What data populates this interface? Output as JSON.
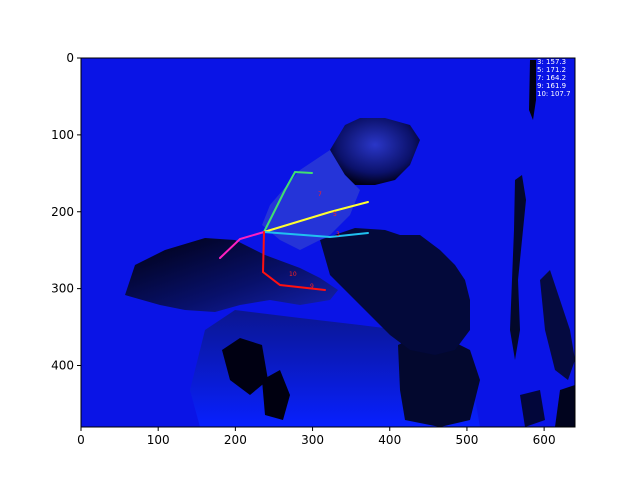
{
  "axes": {
    "x_ticks": [
      "0",
      "100",
      "200",
      "300",
      "400",
      "500",
      "600"
    ],
    "y_ticks": [
      "0",
      "100",
      "200",
      "300",
      "400"
    ],
    "xlim": [
      0,
      640
    ],
    "ylim": [
      480,
      0
    ]
  },
  "overlay_values": [
    "3: 157.3",
    "5: 171.2",
    "7: 164.2",
    "9: 161.9",
    "10: 107.7"
  ],
  "joint_labels": [
    "7",
    "5",
    "3",
    "10",
    "9"
  ],
  "colors": {
    "background_depth": "#0a14e6",
    "skeleton_green": "#40e070",
    "skeleton_yellow": "#ffff30",
    "skeleton_cyan": "#20c0f0",
    "skeleton_magenta": "#ff20c0",
    "skeleton_red": "#ff1010"
  }
}
